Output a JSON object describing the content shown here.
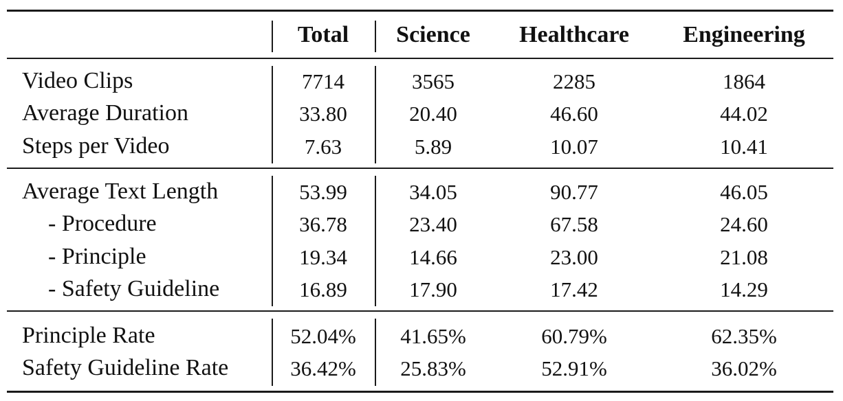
{
  "table": {
    "headers": [
      "",
      "Total",
      "Science",
      "Healthcare",
      "Engineering"
    ],
    "groups": [
      {
        "rows": [
          {
            "label": "Video Clips",
            "indent": false,
            "values": [
              "7714",
              "3565",
              "2285",
              "1864"
            ]
          },
          {
            "label": "Average Duration",
            "indent": false,
            "values": [
              "33.80",
              "20.40",
              "46.60",
              "44.02"
            ]
          },
          {
            "label": "Steps per Video",
            "indent": false,
            "values": [
              "7.63",
              "5.89",
              "10.07",
              "10.41"
            ]
          }
        ]
      },
      {
        "rows": [
          {
            "label": "Average Text Length",
            "indent": false,
            "values": [
              "53.99",
              "34.05",
              "90.77",
              "46.05"
            ]
          },
          {
            "label": "- Procedure",
            "indent": true,
            "values": [
              "36.78",
              "23.40",
              "67.58",
              "24.60"
            ]
          },
          {
            "label": "- Principle",
            "indent": true,
            "values": [
              "19.34",
              "14.66",
              "23.00",
              "21.08"
            ]
          },
          {
            "label": "- Safety Guideline",
            "indent": true,
            "values": [
              "16.89",
              "17.90",
              "17.42",
              "14.29"
            ]
          }
        ]
      },
      {
        "rows": [
          {
            "label": "Principle Rate",
            "indent": false,
            "values": [
              "52.04%",
              "41.65%",
              "60.79%",
              "62.35%"
            ]
          },
          {
            "label": "Safety Guideline Rate",
            "indent": false,
            "values": [
              "36.42%",
              "25.83%",
              "52.91%",
              "36.02%"
            ]
          }
        ]
      }
    ]
  }
}
